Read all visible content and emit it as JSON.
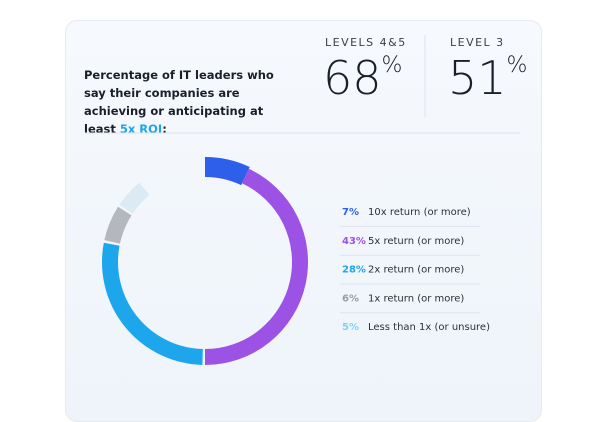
{
  "header": {
    "title": [
      "Percentage of IT leaders who say their companies are achieving or anticipating at least ",
      "5x ROI",
      ":"
    ],
    "stats": [
      {
        "label": "LEVELS 4&5",
        "value": 68,
        "unit": "%"
      },
      {
        "label": "LEVEL 3",
        "value": 51,
        "unit": "%"
      }
    ]
  },
  "chart_data": {
    "type": "donut",
    "categories": [
      "10x return (or more)",
      "5x return (or more)",
      "2x return (or more)",
      "1x return (or more)",
      "Less than 1x (or unsure)"
    ],
    "values": [
      7,
      43,
      28,
      6,
      5
    ],
    "value_labels": [
      "7%",
      "43%",
      "28%",
      "6%",
      "5%"
    ],
    "colors": [
      "#2d5fea",
      "#9d52e6",
      "#1ea6ec",
      "#b4b8bd",
      "#dcebf3"
    ],
    "label_colors": [
      "#2d5fea",
      "#9d52e6",
      "#1ea6ec",
      "#9a9ea3",
      "#7fd3f2"
    ]
  }
}
